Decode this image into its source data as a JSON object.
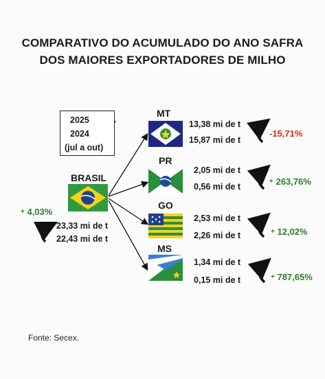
{
  "title": {
    "line1": "COMPARATIVO DO ACUMULADO DO ANO SAFRA",
    "line2": "DOS MAIORES EXPORTADORES DE MILHO"
  },
  "legend": {
    "year_current": "2025",
    "year_previous": "2024",
    "period": "(jul a out)"
  },
  "brasil": {
    "label": "BRASIL",
    "value_2025": "23,33 mi de t",
    "value_2024": "22,43 mi de t",
    "change": "4,03%",
    "change_sign": "+"
  },
  "states": [
    {
      "label": "MT",
      "value_2025": "13,38 mi de t",
      "value_2024": "15,87 mi de t",
      "change": "-15,71%",
      "change_sign": ""
    },
    {
      "label": "PR",
      "value_2025": "2,05 mi de t",
      "value_2024": "0,56 mi de t",
      "change": "263,76%",
      "change_sign": "+"
    },
    {
      "label": "GO",
      "value_2025": "2,53 mi de t",
      "value_2024": "2,26 mi de t",
      "change": "12,02%",
      "change_sign": "+"
    },
    {
      "label": "MS",
      "value_2025": "1,34 mi de t",
      "value_2024": "0,15 mi de t",
      "change": "787,65%",
      "change_sign": "+"
    }
  ],
  "source": "Fonte: Secex.",
  "colors": {
    "negative": "#e1261c",
    "positive": "#2f7a2f",
    "brazil_green": "#2e9b3e",
    "brazil_yellow": "#f7d117",
    "brazil_blue": "#1f3f8f"
  }
}
